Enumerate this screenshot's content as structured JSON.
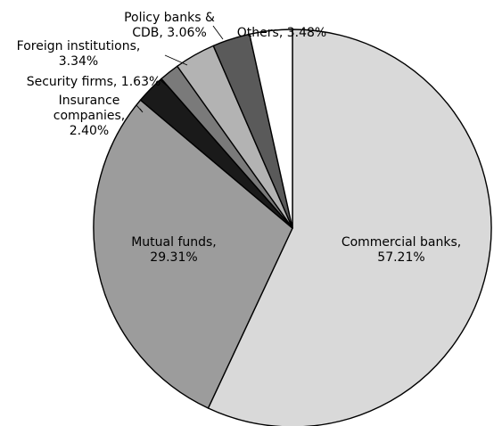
{
  "chart_data": {
    "type": "pie",
    "title": "",
    "start_angle_deg": 0,
    "direction": "clockwise",
    "slices": [
      {
        "name": "Commercial banks",
        "value": 57.21,
        "color": "#d9d9d9",
        "label_lines": [
          "Commercial banks,",
          "57.21%"
        ]
      },
      {
        "name": "Mutual funds",
        "value": 29.31,
        "color": "#9c9c9c",
        "label_lines": [
          "Mutual funds,",
          "29.31%"
        ]
      },
      {
        "name": "Insurance companies",
        "value": 2.4,
        "color": "#1a1a1a",
        "label_lines": [
          "Insurance",
          "companies,",
          "2.40%"
        ]
      },
      {
        "name": "Security firms",
        "value": 1.63,
        "color": "#7a7a7a",
        "label_lines": [
          "Security firms, 1.63%"
        ]
      },
      {
        "name": "Foreign institutions",
        "value": 3.34,
        "color": "#b3b3b3",
        "label_lines": [
          "Foreign institutions,",
          "3.34%"
        ]
      },
      {
        "name": "Policy banks & CDB",
        "value": 3.06,
        "color": "#5a5a5a",
        "label_lines": [
          "Policy banks &",
          "CDB, 3.06%"
        ]
      },
      {
        "name": "Others",
        "value": 3.48,
        "color": "#ffffff",
        "label_lines": [
          "Others, 3.48%"
        ]
      }
    ]
  }
}
